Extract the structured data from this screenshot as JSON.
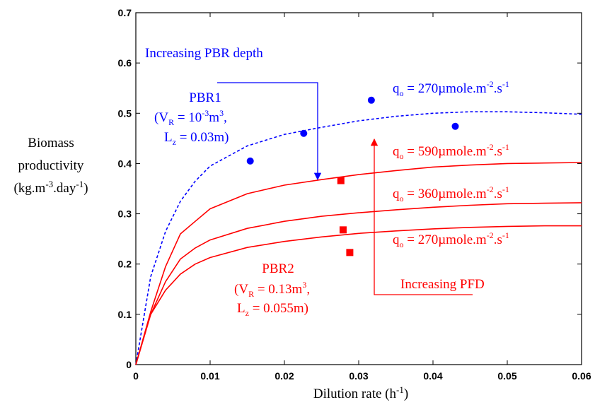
{
  "chart_data": {
    "type": "line",
    "xlabel": {
      "text": "Dilution rate (h",
      "sup": "-1",
      "end": ")"
    },
    "ylabel": {
      "line1": "Biomass",
      "line2": "productivity",
      "line3a": "(kg.m",
      "line3sup1": "-3",
      "line3b": ".day",
      "line3sup2": "-1",
      "line3c": ")"
    },
    "xlim": [
      0,
      0.06
    ],
    "ylim": [
      0,
      0.7
    ],
    "xticks": [
      0,
      0.01,
      0.02,
      0.03,
      0.04,
      0.05,
      0.06
    ],
    "xtick_labels": [
      "0",
      "0.01",
      "0.02",
      "0.03",
      "0.04",
      "0.05",
      "0.06"
    ],
    "yticks": [
      0,
      0.1,
      0.2,
      0.3,
      0.4,
      0.5,
      0.6,
      0.7
    ],
    "ytick_labels": [
      "0",
      "0.1",
      "0.2",
      "0.3",
      "0.4",
      "0.5",
      "0.6",
      "0.7"
    ],
    "grid": false,
    "series": [
      {
        "color": "#0000ff",
        "style": "dashed",
        "x": [
          0,
          0.002,
          0.004,
          0.006,
          0.008,
          0.01,
          0.015,
          0.02,
          0.025,
          0.03,
          0.035,
          0.04,
          0.045,
          0.05,
          0.055,
          0.06
        ],
        "y": [
          0,
          0.175,
          0.265,
          0.325,
          0.365,
          0.395,
          0.435,
          0.458,
          0.472,
          0.485,
          0.494,
          0.5,
          0.503,
          0.503,
          0.501,
          0.498
        ]
      },
      {
        "color": "#ff0000",
        "style": "solid",
        "x": [
          0,
          0.002,
          0.004,
          0.006,
          0.008,
          0.01,
          0.015,
          0.02,
          0.025,
          0.03,
          0.035,
          0.04,
          0.045,
          0.05,
          0.055,
          0.06
        ],
        "y": [
          0,
          0.105,
          0.195,
          0.26,
          0.285,
          0.31,
          0.34,
          0.357,
          0.368,
          0.378,
          0.386,
          0.393,
          0.397,
          0.4,
          0.401,
          0.402
        ]
      },
      {
        "color": "#ff0000",
        "style": "solid",
        "x": [
          0,
          0.002,
          0.004,
          0.006,
          0.008,
          0.01,
          0.015,
          0.02,
          0.025,
          0.03,
          0.035,
          0.04,
          0.045,
          0.05,
          0.055,
          0.06
        ],
        "y": [
          0,
          0.1,
          0.165,
          0.21,
          0.232,
          0.248,
          0.271,
          0.285,
          0.295,
          0.302,
          0.308,
          0.313,
          0.317,
          0.32,
          0.321,
          0.322
        ]
      },
      {
        "color": "#ff0000",
        "style": "solid",
        "x": [
          0,
          0.002,
          0.004,
          0.006,
          0.008,
          0.01,
          0.015,
          0.02,
          0.025,
          0.03,
          0.035,
          0.04,
          0.045,
          0.05,
          0.055,
          0.06
        ],
        "y": [
          0,
          0.1,
          0.148,
          0.18,
          0.2,
          0.213,
          0.233,
          0.245,
          0.254,
          0.261,
          0.266,
          0.27,
          0.273,
          0.275,
          0.276,
          0.276
        ]
      }
    ],
    "points": [
      {
        "shape": "circle",
        "color": "#0000ff",
        "x": 0.0154,
        "y": 0.405
      },
      {
        "shape": "circle",
        "color": "#0000ff",
        "x": 0.0226,
        "y": 0.46
      },
      {
        "shape": "circle",
        "color": "#0000ff",
        "x": 0.0317,
        "y": 0.526
      },
      {
        "shape": "circle",
        "color": "#0000ff",
        "x": 0.043,
        "y": 0.474
      },
      {
        "shape": "square",
        "color": "#ff0000",
        "x": 0.0276,
        "y": 0.366
      },
      {
        "shape": "square",
        "color": "#ff0000",
        "x": 0.0279,
        "y": 0.268
      },
      {
        "shape": "square",
        "color": "#ff0000",
        "x": 0.0288,
        "y": 0.223
      }
    ],
    "annotations": {
      "increasing_pbr_depth": "Increasing PBR depth",
      "pbr1": {
        "name": "PBR1",
        "l2_open": "(V",
        "l2_sub": "R",
        "l2_mid": " = 10",
        "l2_sup": "-3",
        "l2_end": "m",
        "l2_sup2": "3",
        "l2_tail": ",",
        "l3_a": "L",
        "l3_sub": "z",
        "l3_b": " = 0.03m)"
      },
      "pbr2": {
        "name": "PBR2",
        "l2_open": "(V",
        "l2_sub": "R",
        "l2_mid": " = 0.13m",
        "l2_sup": "3",
        "l2_tail": ",",
        "l3_a": "L",
        "l3_sub": "z",
        "l3_b": " = 0.055m)"
      },
      "increasing_pfd": "Increasing PFD",
      "q_labels": [
        {
          "q": "q",
          "sub": "o",
          "val": " = 270µmole.m",
          "sup1": "-2",
          "mid": ".s",
          "sup2": "-1",
          "color": "#0000ff"
        },
        {
          "q": "q",
          "sub": "o",
          "val": " = 590µmole.m",
          "sup1": "-2",
          "mid": ".s",
          "sup2": "-1",
          "color": "#ff0000"
        },
        {
          "q": "q",
          "sub": "o",
          "val": " = 360µmole.m",
          "sup1": "-2",
          "mid": ".s",
          "sup2": "-1",
          "color": "#ff0000"
        },
        {
          "q": "q",
          "sub": "o",
          "val": " = 270µmole.m",
          "sup1": "-2",
          "mid": ".s",
          "sup2": "-1",
          "color": "#ff0000"
        }
      ]
    }
  }
}
